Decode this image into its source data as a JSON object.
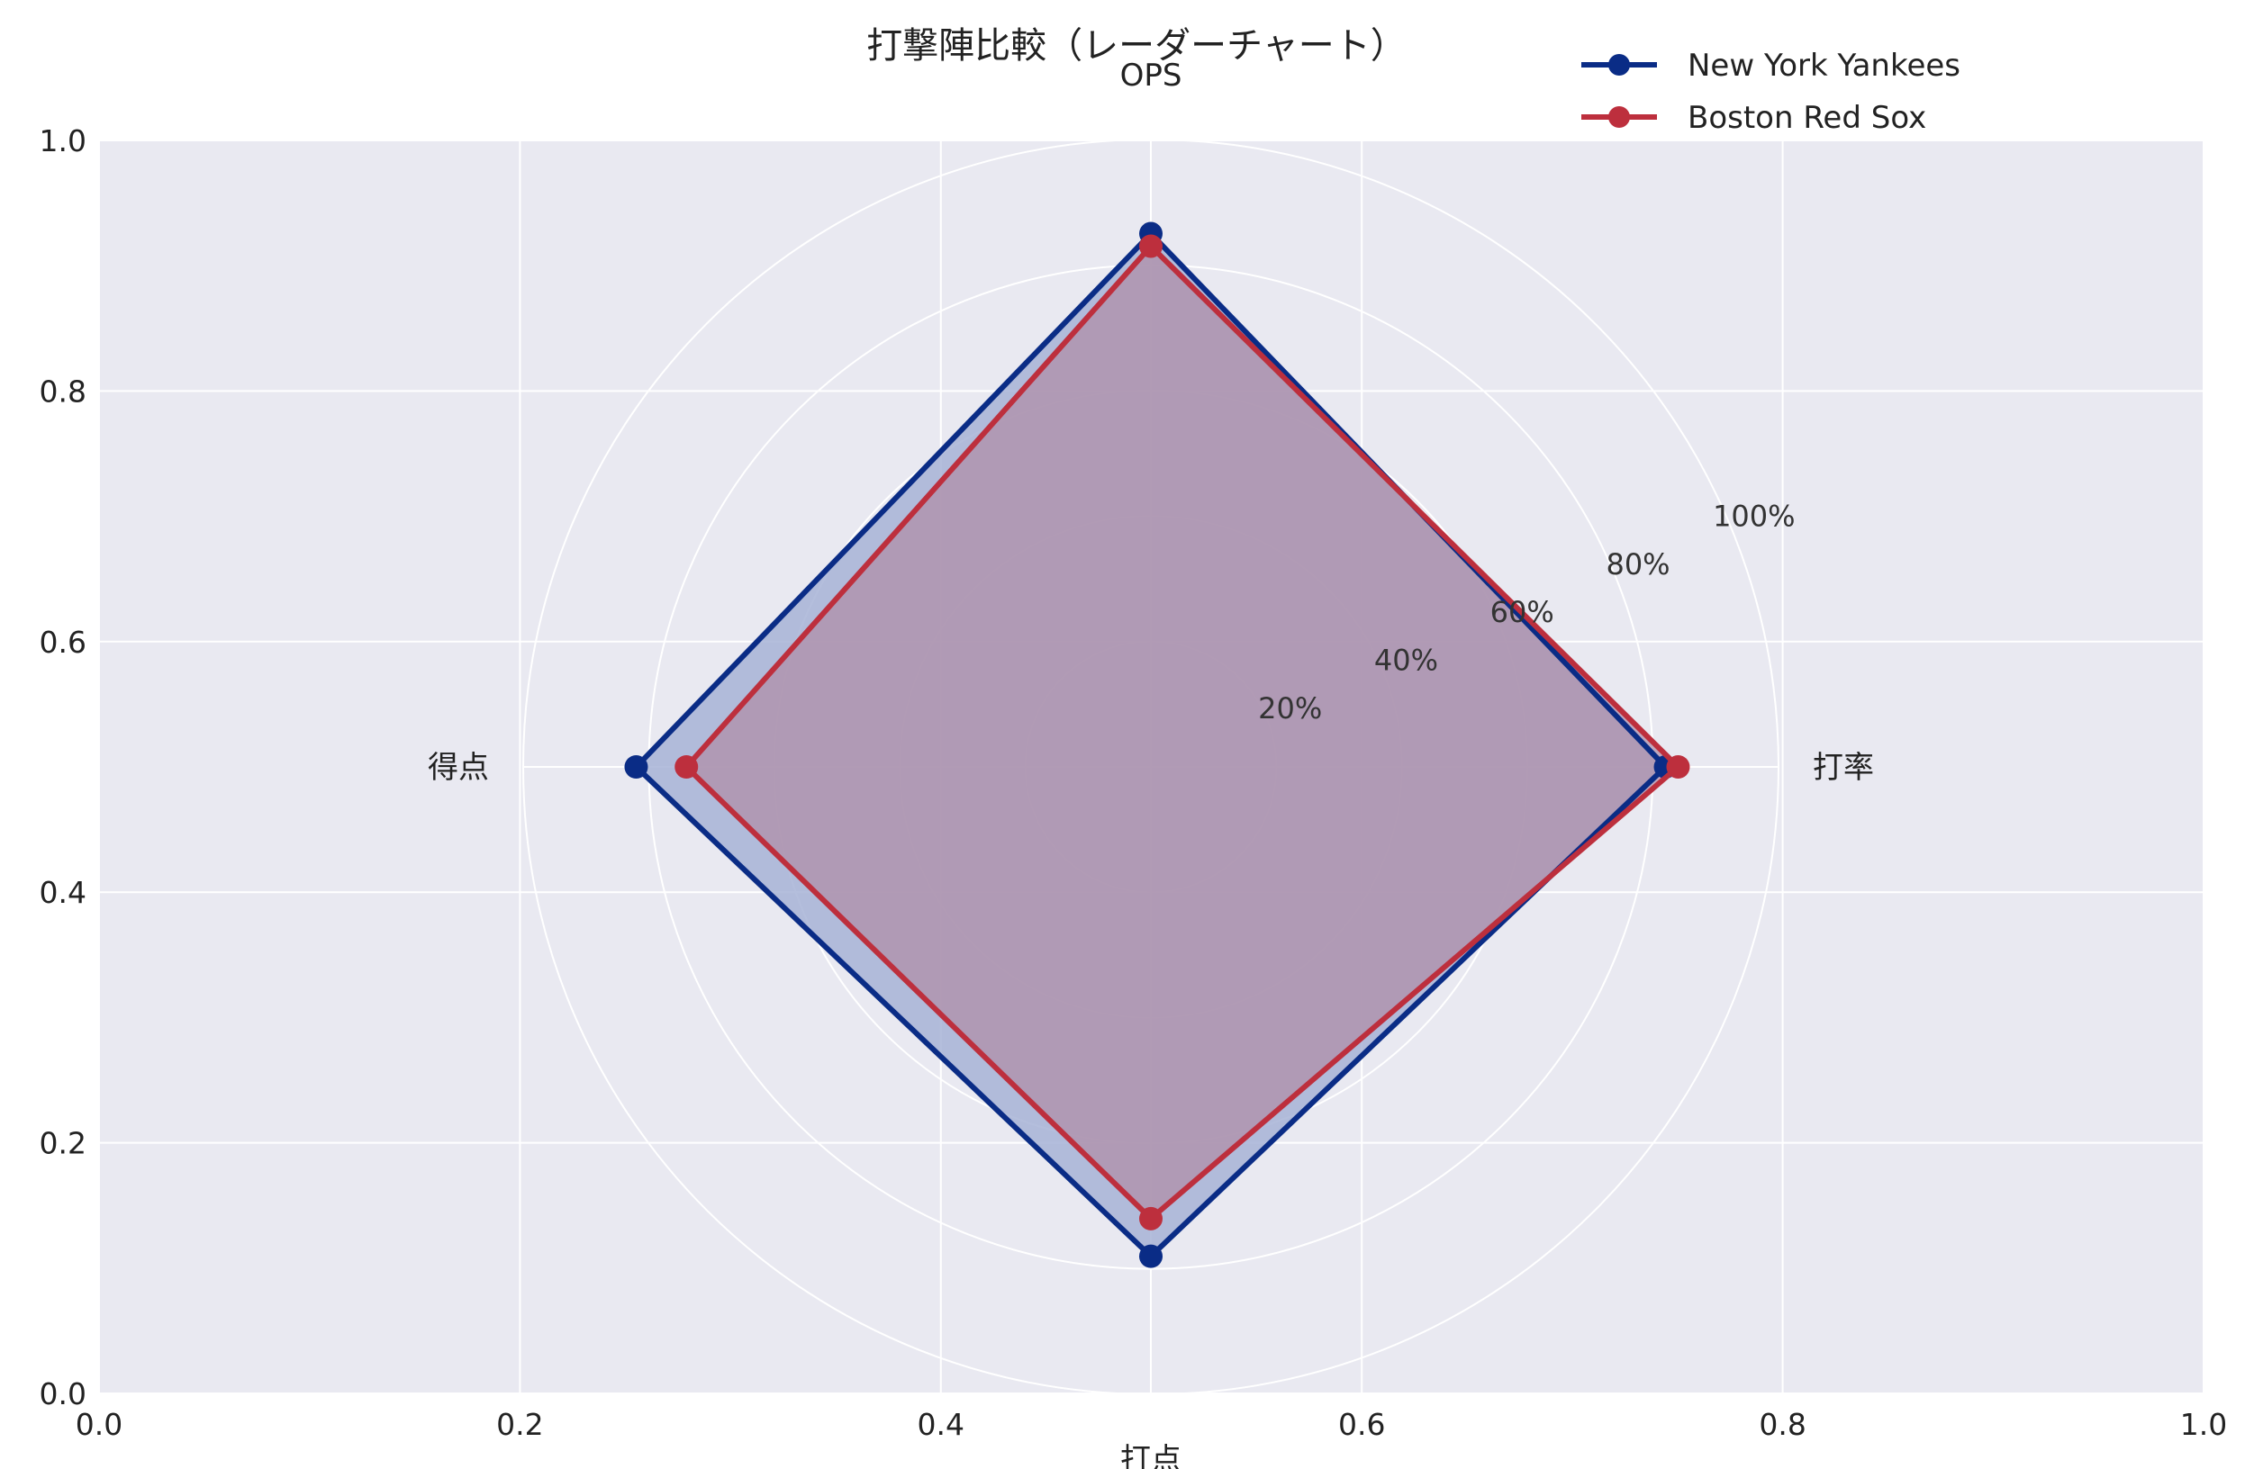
{
  "chart_data": {
    "type": "radar",
    "title": "打撃陣比較（レーダーチャート）",
    "categories": [
      "打率",
      "OPS",
      "得点",
      "打点"
    ],
    "radial_ticks": [
      "20%",
      "40%",
      "60%",
      "80%",
      "100%"
    ],
    "radial_range": [
      0,
      100
    ],
    "series": [
      {
        "name": "New York Yankees",
        "values": [
          82,
          85,
          82,
          78
        ],
        "color": "#0a2c86",
        "fill": "#a7b3d6"
      },
      {
        "name": "Boston Red Sox",
        "values": [
          84,
          83,
          74,
          72
        ],
        "color": "#bd2f3d",
        "fill": "#b08fa8"
      }
    ],
    "cartesian_axes": {
      "xlim": [
        0,
        1
      ],
      "ylim": [
        0,
        1
      ],
      "xticks": [
        "0.0",
        "0.2",
        "0.4",
        "0.6",
        "0.8",
        "1.0"
      ],
      "yticks": [
        "0.0",
        "0.2",
        "0.4",
        "0.6",
        "0.8",
        "1.0"
      ]
    },
    "grid": true,
    "legend_position": "top-right",
    "plot_background": "#e9e9f1"
  }
}
